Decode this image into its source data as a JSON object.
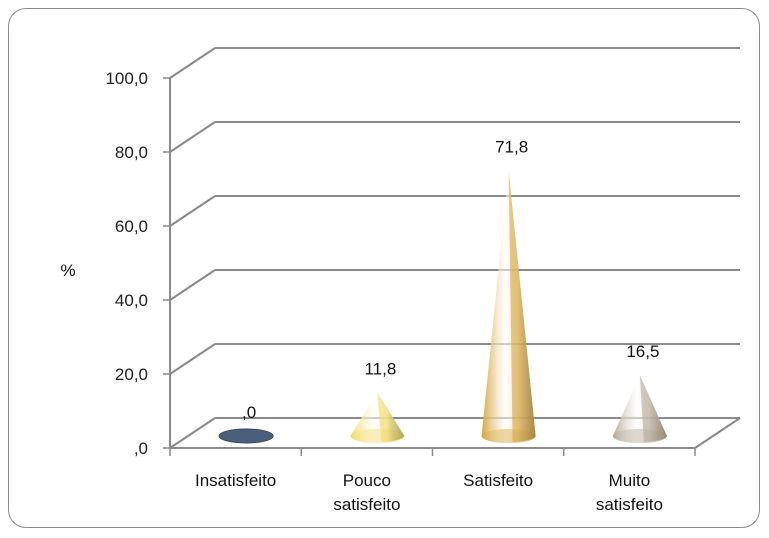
{
  "chart_data": {
    "type": "bar",
    "style": "3d-cone",
    "categories": [
      [
        "Insatisfeito"
      ],
      [
        "Pouco",
        "satisfeito"
      ],
      [
        "Satisfeito"
      ],
      [
        "Muito",
        "satisfeito"
      ]
    ],
    "values": [
      0,
      11.8,
      71.8,
      16.5
    ],
    "data_labels": [
      ",0",
      "11,8",
      "71,8",
      "16,5"
    ],
    "colors": [
      "#4a5f7a",
      "#f2dc6a",
      "#d7a53c",
      "#b5aa98"
    ],
    "title": "",
    "xlabel": "",
    "ylabel": "%",
    "ylim": [
      0,
      100
    ],
    "y_ticks": [
      0,
      20,
      40,
      60,
      80,
      100
    ],
    "y_tick_labels": [
      ",0",
      "20,0",
      "40,0",
      "60,0",
      "80,0",
      "100,0"
    ],
    "grid": true,
    "legend": "none"
  }
}
